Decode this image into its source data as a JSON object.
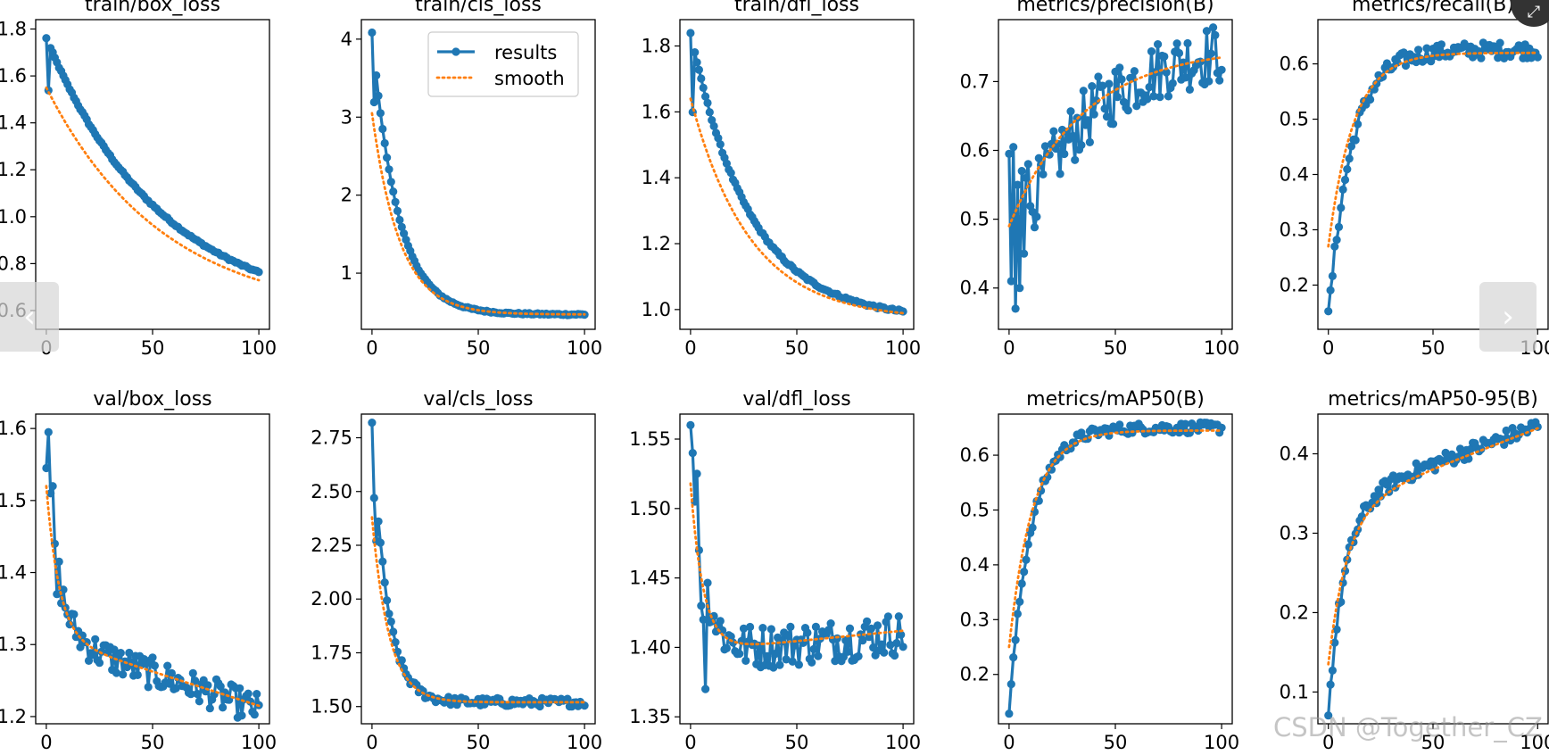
{
  "colors": {
    "results": "#1f77b4",
    "smooth": "#ff7f0e",
    "axis": "#000000"
  },
  "legend": {
    "results_label": "results",
    "smooth_label": "smooth"
  },
  "nav": {
    "prev_icon": "‹",
    "next_icon": "›",
    "expand_icon": "⤢"
  },
  "watermark": {
    "text": "CSDN @Together_CZ"
  },
  "chart_data": [
    {
      "type": "line",
      "title": "train/box_loss",
      "xlim": [
        -5,
        105
      ],
      "ylim": [
        0.52,
        1.84
      ],
      "xticks": [
        0,
        50,
        100
      ],
      "yticks": [
        0.6,
        0.8,
        1.0,
        1.2,
        1.4,
        1.6,
        1.8
      ],
      "ytick_labels": [
        "0.6",
        "0.8",
        "1.0",
        "1.2",
        "1.4",
        "1.6",
        "1.8"
      ],
      "series": [
        {
          "name": "results",
          "shape": "decay",
          "start": 1.76,
          "second": 1.54,
          "end": 0.57,
          "tau": 0.55,
          "noise": 0.004
        },
        {
          "name": "smooth",
          "shape": "decay",
          "start": 1.55,
          "end": 0.57,
          "tau": 0.55
        }
      ]
    },
    {
      "type": "line",
      "title": "train/cls_loss",
      "xlim": [
        -5,
        105
      ],
      "ylim": [
        0.28,
        4.25
      ],
      "xticks": [
        0,
        50,
        100
      ],
      "yticks": [
        1,
        2,
        3,
        4
      ],
      "ytick_labels": [
        "1",
        "2",
        "3",
        "4"
      ],
      "legend": "upper right",
      "series": [
        {
          "name": "results",
          "shape": "decay",
          "start": 4.08,
          "second": 3.2,
          "end": 0.47,
          "tau": 0.12,
          "noise": 0.01
        },
        {
          "name": "smooth",
          "shape": "decay",
          "start": 3.05,
          "end": 0.47,
          "tau": 0.13
        }
      ]
    },
    {
      "type": "line",
      "title": "train/dfl_loss",
      "xlim": [
        -5,
        105
      ],
      "ylim": [
        0.94,
        1.88
      ],
      "xticks": [
        0,
        50,
        100
      ],
      "yticks": [
        1.0,
        1.2,
        1.4,
        1.6,
        1.8
      ],
      "ytick_labels": [
        "1.0",
        "1.2",
        "1.4",
        "1.6",
        "1.8"
      ],
      "series": [
        {
          "name": "results",
          "shape": "decay",
          "start": 1.84,
          "second": 1.6,
          "end": 0.97,
          "tau": 0.28,
          "noise": 0.004
        },
        {
          "name": "smooth",
          "shape": "decay",
          "start": 1.64,
          "end": 0.97,
          "tau": 0.28
        }
      ]
    },
    {
      "type": "line",
      "title": "metrics/precision(B)",
      "xlim": [
        -5,
        105
      ],
      "ylim": [
        0.34,
        0.79
      ],
      "xticks": [
        0,
        50,
        100
      ],
      "yticks": [
        0.4,
        0.5,
        0.6,
        0.7
      ],
      "ytick_labels": [
        "0.4",
        "0.5",
        "0.6",
        "0.7"
      ],
      "series": [
        {
          "name": "results",
          "shape": "rise",
          "start": 0.44,
          "end": 0.76,
          "tau": 0.35,
          "noise": 0.045,
          "fixed": [
            0.595,
            0.41,
            0.605,
            0.37,
            0.55,
            0.4,
            0.57,
            0.45,
            0.56,
            0.58
          ]
        },
        {
          "name": "smooth",
          "shape": "rise",
          "start": 0.49,
          "end": 0.75,
          "tau": 0.35
        }
      ]
    },
    {
      "type": "line",
      "title": "metrics/recall(B)",
      "xlim": [
        -5,
        105
      ],
      "ylim": [
        0.12,
        0.68
      ],
      "xticks": [
        0,
        50,
        100
      ],
      "yticks": [
        0.2,
        0.3,
        0.4,
        0.5,
        0.6
      ],
      "ytick_labels": [
        "0.2",
        "0.3",
        "0.4",
        "0.5",
        "0.6"
      ],
      "series": [
        {
          "name": "results",
          "shape": "rise",
          "start": 0.14,
          "end": 0.625,
          "tau": 0.11,
          "noise": 0.015
        },
        {
          "name": "smooth",
          "shape": "rise",
          "start": 0.27,
          "end": 0.62,
          "tau": 0.12
        }
      ]
    },
    {
      "type": "line",
      "title": "val/box_loss",
      "xlim": [
        -5,
        105
      ],
      "ylim": [
        1.19,
        1.62
      ],
      "xticks": [
        0,
        50,
        100
      ],
      "yticks": [
        1.2,
        1.3,
        1.4,
        1.5,
        1.6
      ],
      "ytick_labels": [
        "1.2",
        "1.3",
        "1.4",
        "1.5",
        "1.6"
      ],
      "series": [
        {
          "name": "results",
          "shape": "drop",
          "start": 1.545,
          "end": 1.21,
          "plateau": 1.31,
          "tau": 0.06,
          "noise": 0.022,
          "fixed": [
            1.545,
            1.595,
            1.51,
            1.52,
            1.44,
            1.37,
            1.415
          ]
        },
        {
          "name": "smooth",
          "shape": "drop",
          "start": 1.52,
          "end": 1.215,
          "plateau": 1.31,
          "tau": 0.06
        }
      ]
    },
    {
      "type": "line",
      "title": "val/cls_loss",
      "xlim": [
        -5,
        105
      ],
      "ylim": [
        1.42,
        2.86
      ],
      "xticks": [
        0,
        50,
        100
      ],
      "yticks": [
        1.5,
        1.75,
        2.0,
        2.25,
        2.5,
        2.75
      ],
      "ytick_labels": [
        "1.50",
        "1.75",
        "2.00",
        "2.25",
        "2.50",
        "2.75"
      ],
      "series": [
        {
          "name": "results",
          "shape": "decay",
          "start": 2.82,
          "second": 2.47,
          "end": 1.52,
          "tau": 0.07,
          "noise": 0.02,
          "fixed": [
            2.82,
            2.47,
            2.27
          ]
        },
        {
          "name": "smooth",
          "shape": "decay",
          "start": 2.38,
          "end": 1.52,
          "tau": 0.08
        }
      ]
    },
    {
      "type": "line",
      "title": "val/dfl_loss",
      "xlim": [
        -5,
        105
      ],
      "ylim": [
        1.345,
        1.568
      ],
      "xticks": [
        0,
        50,
        100
      ],
      "yticks": [
        1.35,
        1.4,
        1.45,
        1.5,
        1.55
      ],
      "ytick_labels": [
        "1.35",
        "1.40",
        "1.45",
        "1.50",
        "1.55"
      ],
      "series": [
        {
          "name": "results",
          "shape": "valley",
          "start": 1.56,
          "end": 1.41,
          "low": 1.395,
          "tau": 0.06,
          "noise": 0.016,
          "fixed": [
            1.56,
            1.54,
            1.505,
            1.525,
            1.47,
            1.43,
            1.42,
            1.37
          ]
        },
        {
          "name": "smooth",
          "shape": "valley",
          "start": 1.518,
          "end": 1.412,
          "low": 1.397,
          "tau": 0.06
        }
      ]
    },
    {
      "type": "line",
      "title": "metrics/mAP50(B)",
      "xlim": [
        -5,
        105
      ],
      "ylim": [
        0.11,
        0.675
      ],
      "xticks": [
        0,
        50,
        100
      ],
      "yticks": [
        0.2,
        0.3,
        0.4,
        0.5,
        0.6
      ],
      "ytick_labels": [
        "0.2",
        "0.3",
        "0.4",
        "0.5",
        "0.6"
      ],
      "series": [
        {
          "name": "results",
          "shape": "rise",
          "start": 0.13,
          "end": 0.65,
          "tau": 0.1,
          "noise": 0.01
        },
        {
          "name": "smooth",
          "shape": "rise",
          "start": 0.25,
          "end": 0.645,
          "tau": 0.11
        }
      ]
    },
    {
      "type": "line",
      "title": "metrics/mAP50-95(B)",
      "xlim": [
        -5,
        105
      ],
      "ylim": [
        0.06,
        0.45
      ],
      "xticks": [
        0,
        50,
        100
      ],
      "yticks": [
        0.1,
        0.2,
        0.3,
        0.4
      ],
      "ytick_labels": [
        "0.1",
        "0.2",
        "0.3",
        "0.4"
      ],
      "series": [
        {
          "name": "results",
          "shape": "rise2",
          "start": 0.075,
          "mid": 0.34,
          "end": 0.435,
          "tau": 0.08,
          "noise": 0.01
        },
        {
          "name": "smooth",
          "shape": "rise2",
          "start": 0.135,
          "mid": 0.33,
          "end": 0.432,
          "tau": 0.09
        }
      ]
    }
  ]
}
